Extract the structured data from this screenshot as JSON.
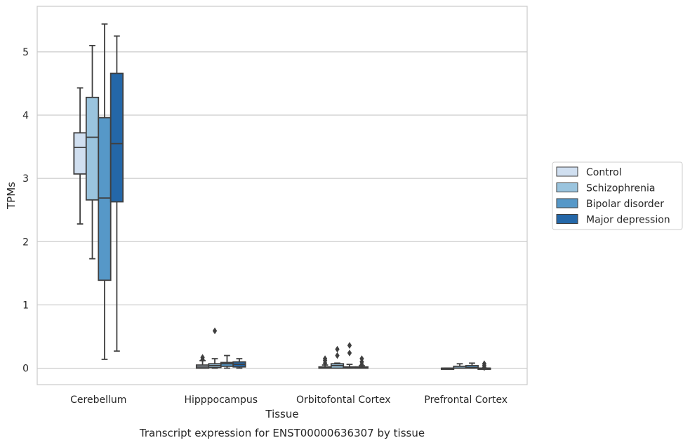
{
  "chart_data": {
    "type": "box",
    "xlabel": "Tissue",
    "ylabel": "TPMs",
    "caption": "Transcript expression for ENST00000636307 by tissue",
    "ylim": [
      -0.26,
      5.72
    ],
    "yticks": [
      0,
      1,
      2,
      3,
      4,
      5
    ],
    "grid": "horizontal",
    "legend_position": "right",
    "categories": [
      "Cerebellum",
      "Hipppocampus",
      "Orbitofontal Cortex",
      "Prefrontal Cortex"
    ],
    "series": [
      {
        "name": "Control",
        "color": "#d0dff0",
        "boxes": [
          {
            "whislo": 2.28,
            "q1": 3.07,
            "med": 3.49,
            "q3": 3.72,
            "whishi": 4.43,
            "fliers": []
          },
          {
            "whislo": 0.0,
            "q1": 0.0,
            "med": 0.02,
            "q3": 0.05,
            "whishi": 0.12,
            "fliers": [
              0.14,
              0.17
            ]
          },
          {
            "whislo": 0.0,
            "q1": 0.0,
            "med": 0.0,
            "q3": 0.02,
            "whishi": 0.05,
            "fliers": [
              0.08,
              0.12,
              0.15
            ]
          },
          {
            "whislo": 0.0,
            "q1": 0.0,
            "med": 0.0,
            "q3": 0.0,
            "whishi": 0.0,
            "fliers": []
          }
        ]
      },
      {
        "name": "Schizophrenia",
        "color": "#9ac4de",
        "boxes": [
          {
            "whislo": 1.73,
            "q1": 2.66,
            "med": 3.65,
            "q3": 4.28,
            "whishi": 5.1,
            "fliers": []
          },
          {
            "whislo": 0.0,
            "q1": 0.01,
            "med": 0.04,
            "q3": 0.07,
            "whishi": 0.15,
            "fliers": [
              0.59
            ]
          },
          {
            "whislo": 0.0,
            "q1": 0.0,
            "med": 0.04,
            "q3": 0.07,
            "whishi": 0.08,
            "fliers": [
              0.2,
              0.3
            ]
          },
          {
            "whislo": 0.0,
            "q1": 0.0,
            "med": 0.0,
            "q3": 0.03,
            "whishi": 0.07,
            "fliers": []
          }
        ]
      },
      {
        "name": "Bipolar disorder",
        "color": "#5698c8",
        "boxes": [
          {
            "whislo": 0.14,
            "q1": 1.39,
            "med": 2.69,
            "q3": 3.96,
            "whishi": 5.44,
            "fliers": []
          },
          {
            "whislo": 0.0,
            "q1": 0.03,
            "med": 0.07,
            "q3": 0.09,
            "whishi": 0.2,
            "fliers": []
          },
          {
            "whislo": 0.0,
            "q1": 0.0,
            "med": 0.01,
            "q3": 0.02,
            "whishi": 0.06,
            "fliers": [
              0.24,
              0.36
            ]
          },
          {
            "whislo": 0.0,
            "q1": 0.0,
            "med": 0.01,
            "q3": 0.04,
            "whishi": 0.08,
            "fliers": []
          }
        ]
      },
      {
        "name": "Major depression",
        "color": "#2467a8",
        "boxes": [
          {
            "whislo": 0.27,
            "q1": 2.63,
            "med": 3.55,
            "q3": 4.66,
            "whishi": 5.25,
            "fliers": []
          },
          {
            "whislo": 0.0,
            "q1": 0.02,
            "med": 0.06,
            "q3": 0.1,
            "whishi": 0.15,
            "fliers": []
          },
          {
            "whislo": 0.0,
            "q1": 0.0,
            "med": 0.0,
            "q3": 0.02,
            "whishi": 0.04,
            "fliers": [
              0.06,
              0.1,
              0.15
            ]
          },
          {
            "whislo": 0.0,
            "q1": 0.0,
            "med": 0.0,
            "q3": 0.0,
            "whishi": 0.0,
            "fliers": [
              0.01,
              0.04,
              0.07
            ]
          }
        ]
      }
    ]
  }
}
